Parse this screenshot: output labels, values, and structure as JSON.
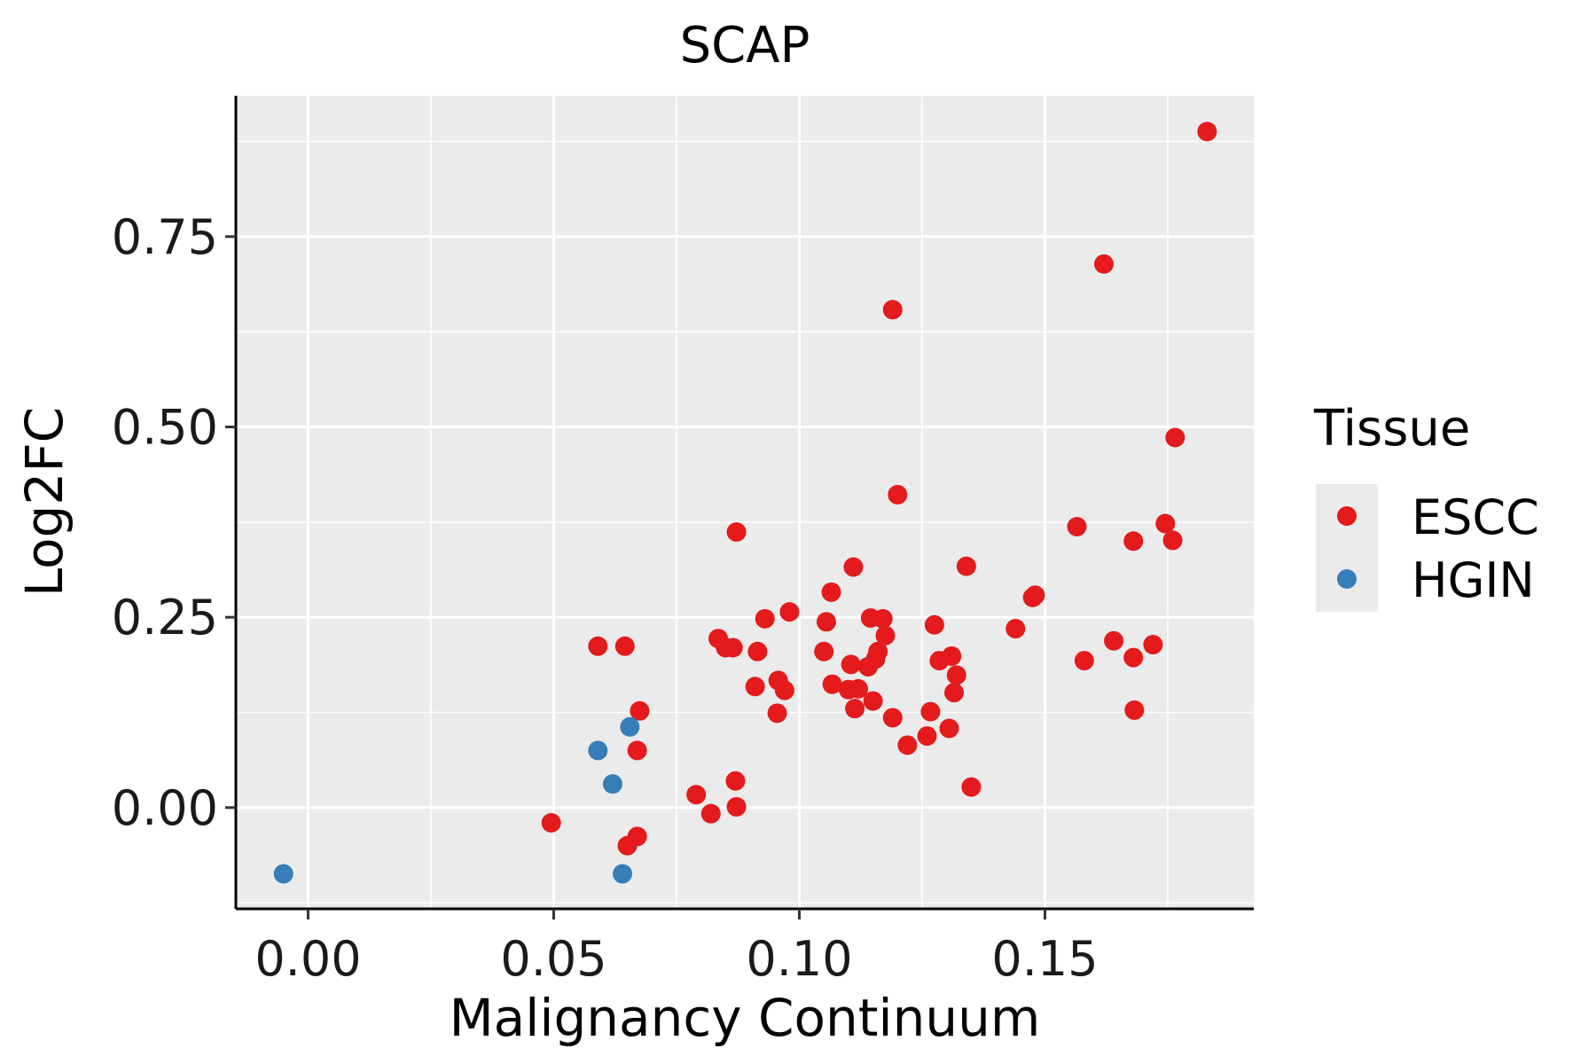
{
  "chart_data": {
    "type": "scatter",
    "title": "SCAP",
    "xlabel": "Malignancy Continuum",
    "ylabel": "Log2FC",
    "xlim": [
      -0.0147,
      0.1925
    ],
    "ylim": [
      -0.133,
      0.935
    ],
    "grid": true,
    "x_ticks": [
      0.0,
      0.05,
      0.1,
      0.15
    ],
    "x_tick_labels": [
      "0.00",
      "0.05",
      "0.10",
      "0.15"
    ],
    "y_ticks": [
      0.0,
      0.25,
      0.5,
      0.75
    ],
    "y_tick_labels": [
      "0.00",
      "0.25",
      "0.50",
      "0.75"
    ],
    "legend": {
      "title": "Tissue",
      "position": "right",
      "entries": [
        {
          "label": "ESCC",
          "color": "#E41A1C"
        },
        {
          "label": "HGIN",
          "color": "#377EB8"
        }
      ]
    },
    "series": [
      {
        "name": "ESCC",
        "color": "#E41A1C",
        "points": [
          [
            0.0495,
            -0.02
          ],
          [
            0.059,
            0.212
          ],
          [
            0.0645,
            0.212
          ],
          [
            0.065,
            -0.05
          ],
          [
            0.067,
            -0.038
          ],
          [
            0.067,
            0.075
          ],
          [
            0.0675,
            0.127
          ],
          [
            0.079,
            0.017
          ],
          [
            0.082,
            -0.008
          ],
          [
            0.0835,
            0.222
          ],
          [
            0.085,
            0.21
          ],
          [
            0.0865,
            0.21
          ],
          [
            0.087,
            0.035
          ],
          [
            0.0872,
            0.001
          ],
          [
            0.0872,
            0.362
          ],
          [
            0.091,
            0.159
          ],
          [
            0.0915,
            0.205
          ],
          [
            0.093,
            0.248
          ],
          [
            0.0955,
            0.124
          ],
          [
            0.0957,
            0.167
          ],
          [
            0.097,
            0.154
          ],
          [
            0.098,
            0.257
          ],
          [
            0.105,
            0.205
          ],
          [
            0.1055,
            0.244
          ],
          [
            0.1065,
            0.283
          ],
          [
            0.1067,
            0.162
          ],
          [
            0.11,
            0.155
          ],
          [
            0.1105,
            0.188
          ],
          [
            0.111,
            0.316
          ],
          [
            0.1113,
            0.13
          ],
          [
            0.112,
            0.156
          ],
          [
            0.114,
            0.185
          ],
          [
            0.1145,
            0.249
          ],
          [
            0.115,
            0.14
          ],
          [
            0.1155,
            0.195
          ],
          [
            0.116,
            0.205
          ],
          [
            0.117,
            0.248
          ],
          [
            0.1175,
            0.226
          ],
          [
            0.119,
            0.654
          ],
          [
            0.119,
            0.118
          ],
          [
            0.12,
            0.411
          ],
          [
            0.122,
            0.082
          ],
          [
            0.126,
            0.094
          ],
          [
            0.1267,
            0.126
          ],
          [
            0.1275,
            0.24
          ],
          [
            0.1285,
            0.193
          ],
          [
            0.1305,
            0.104
          ],
          [
            0.131,
            0.199
          ],
          [
            0.1315,
            0.151
          ],
          [
            0.132,
            0.174
          ],
          [
            0.134,
            0.317
          ],
          [
            0.135,
            0.027
          ],
          [
            0.144,
            0.235
          ],
          [
            0.1475,
            0.276
          ],
          [
            0.148,
            0.279
          ],
          [
            0.1565,
            0.369
          ],
          [
            0.158,
            0.193
          ],
          [
            0.162,
            0.714
          ],
          [
            0.164,
            0.219
          ],
          [
            0.168,
            0.35
          ],
          [
            0.168,
            0.197
          ],
          [
            0.1682,
            0.128
          ],
          [
            0.172,
            0.214
          ],
          [
            0.1745,
            0.373
          ],
          [
            0.176,
            0.351
          ],
          [
            0.1765,
            0.486
          ],
          [
            0.183,
            0.888
          ]
        ]
      },
      {
        "name": "HGIN",
        "color": "#377EB8",
        "points": [
          [
            -0.005,
            -0.087
          ],
          [
            0.059,
            0.075
          ],
          [
            0.062,
            0.031
          ],
          [
            0.064,
            -0.087
          ],
          [
            0.0655,
            0.106
          ]
        ]
      }
    ]
  }
}
